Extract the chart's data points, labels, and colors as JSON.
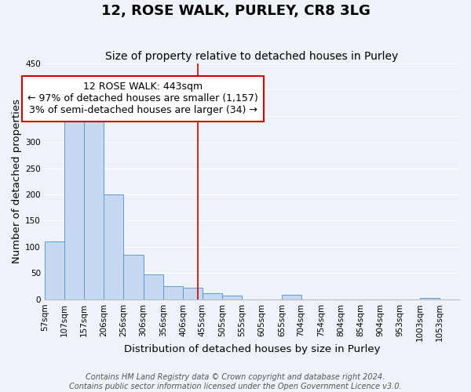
{
  "title": "12, ROSE WALK, PURLEY, CR8 3LG",
  "subtitle": "Size of property relative to detached houses in Purley",
  "xlabel": "Distribution of detached houses by size in Purley",
  "ylabel": "Number of detached properties",
  "bar_left_edges": [
    57,
    107,
    157,
    206,
    256,
    306,
    356,
    406,
    455,
    505,
    555,
    605,
    655,
    704,
    754,
    804,
    854,
    904,
    953,
    1003
  ],
  "bar_heights": [
    110,
    347,
    340,
    200,
    85,
    47,
    25,
    22,
    12,
    7,
    0,
    0,
    8,
    0,
    0,
    0,
    0,
    0,
    0,
    3
  ],
  "bar_widths": [
    50,
    50,
    49,
    50,
    50,
    50,
    50,
    49,
    50,
    50,
    50,
    50,
    49,
    50,
    50,
    50,
    50,
    49,
    50,
    50
  ],
  "tick_labels": [
    "57sqm",
    "107sqm",
    "157sqm",
    "206sqm",
    "256sqm",
    "306sqm",
    "356sqm",
    "406sqm",
    "455sqm",
    "505sqm",
    "555sqm",
    "605sqm",
    "655sqm",
    "704sqm",
    "754sqm",
    "804sqm",
    "854sqm",
    "904sqm",
    "953sqm",
    "1003sqm",
    "1053sqm"
  ],
  "bar_color": "#c6d9f0",
  "bar_edge_color": "#5b9bd5",
  "property_line_x": 443,
  "annotation_title": "12 ROSE WALK: 443sqm",
  "annotation_line1": "← 97% of detached houses are smaller (1,157)",
  "annotation_line2": "3% of semi-detached houses are larger (34) →",
  "annotation_box_color": "#ffffff",
  "annotation_box_edge_color": "#cc0000",
  "vline_color": "#cc0000",
  "ylim": [
    0,
    450
  ],
  "xlim": [
    57,
    1103
  ],
  "footer1": "Contains HM Land Registry data © Crown copyright and database right 2024.",
  "footer2": "Contains public sector information licensed under the Open Government Licence v3.0.",
  "bg_color": "#eef2f9",
  "grid_color": "#ffffff",
  "title_fontsize": 13,
  "subtitle_fontsize": 10,
  "axis_label_fontsize": 9.5,
  "tick_fontsize": 7.5,
  "footer_fontsize": 7,
  "annotation_fontsize": 9
}
